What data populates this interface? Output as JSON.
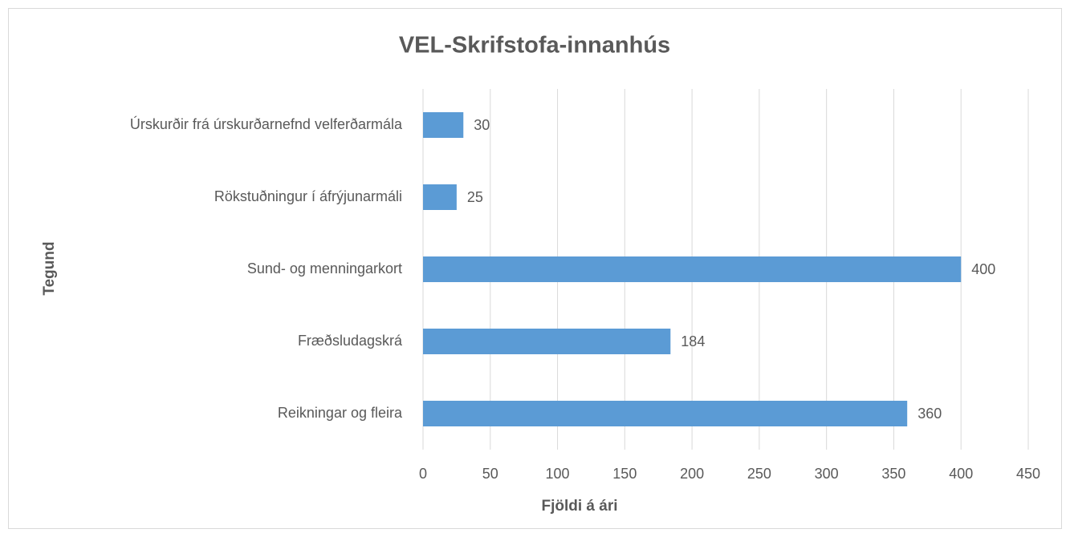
{
  "chart_data": {
    "type": "bar",
    "orientation": "horizontal",
    "title": "VEL-Skrifstofa-innanhús",
    "x_label": "Fjöldi á ári",
    "y_label": "Tegund",
    "categories": [
      "Úrskurðir frá úrskurðarnefnd velferðarmála",
      "Rökstuðningur í áfrýjunarmáli",
      "Sund- og menningarkort",
      "Fræðsludagskrá",
      "Reikningar og fleira"
    ],
    "values": [
      30,
      25,
      400,
      184,
      360
    ],
    "color": "#5b9bd5",
    "xlim": [
      0,
      450
    ],
    "xticks": [
      0,
      50,
      100,
      150,
      200,
      250,
      300,
      350,
      400,
      450
    ],
    "grid": true
  }
}
